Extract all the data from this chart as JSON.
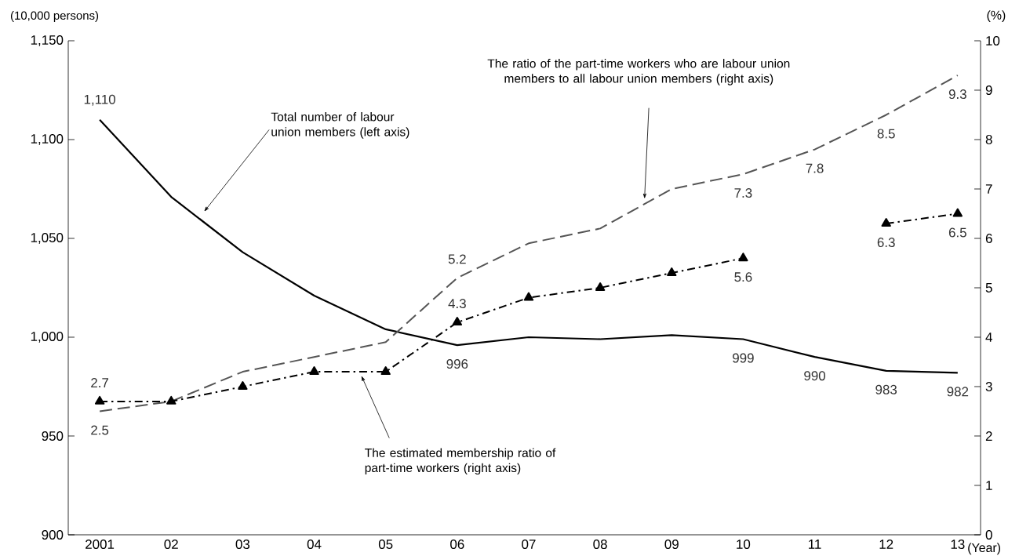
{
  "chart_data": {
    "type": "line",
    "categories": [
      "2001",
      "02",
      "03",
      "04",
      "05",
      "06",
      "07",
      "08",
      "09",
      "10",
      "11",
      "12",
      "13"
    ],
    "xlabel": "(Year)",
    "ylabel": "(10,000 persons)",
    "y2label": "(%)",
    "ylim": [
      900,
      1150
    ],
    "yticks": [
      900,
      950,
      {
        "value": 1000,
        "label": "1,000"
      },
      {
        "value": 1050,
        "label": "1,050"
      },
      {
        "value": 1100,
        "label": "1,100"
      },
      {
        "value": 1150,
        "label": "1,150"
      }
    ],
    "y2lim": [
      0,
      10
    ],
    "y2ticks": [
      0,
      1,
      2,
      3,
      4,
      5,
      6,
      7,
      8,
      9,
      10
    ],
    "series": [
      {
        "color": "#000000",
        "line_style": "solid",
        "marker": "none",
        "values": [
          1110,
          1071,
          1043,
          1021,
          1004,
          996,
          1000,
          999,
          1001,
          999,
          990,
          983,
          982
        ],
        "value_labels": [
          "1,110",
          null,
          null,
          null,
          null,
          "996",
          null,
          null,
          null,
          "999",
          "990",
          "983",
          "982"
        ]
      },
      {
        "color": "#555555",
        "line_style": "dashed",
        "marker": "none",
        "axis": "y2",
        "values": [
          2.5,
          2.7,
          3.3,
          3.6,
          3.9,
          5.2,
          5.9,
          6.2,
          7.0,
          7.3,
          7.8,
          8.5,
          9.3
        ],
        "value_labels": [
          "2.5",
          null,
          null,
          null,
          null,
          "5.2",
          null,
          null,
          null,
          "7.3",
          "7.8",
          "8.5",
          "9.3"
        ]
      },
      {
        "color": "#000000",
        "line_style": "dashdot",
        "marker": "triangle",
        "axis": "y2",
        "values": [
          2.7,
          2.7,
          3.0,
          3.3,
          3.3,
          4.3,
          4.8,
          5.0,
          5.3,
          5.6,
          null,
          6.3,
          6.5
        ],
        "value_labels": [
          "2.7",
          null,
          null,
          null,
          null,
          "4.3",
          null,
          null,
          null,
          "5.6",
          null,
          "6.3",
          "6.5"
        ]
      }
    ],
    "annotations": [
      "Total number of labour union members (left axis)",
      "The ratio of the part-time workers who are labour union members to all labour union members (right axis)",
      "The estimated membership ratio of part-time workers (right axis)"
    ]
  }
}
